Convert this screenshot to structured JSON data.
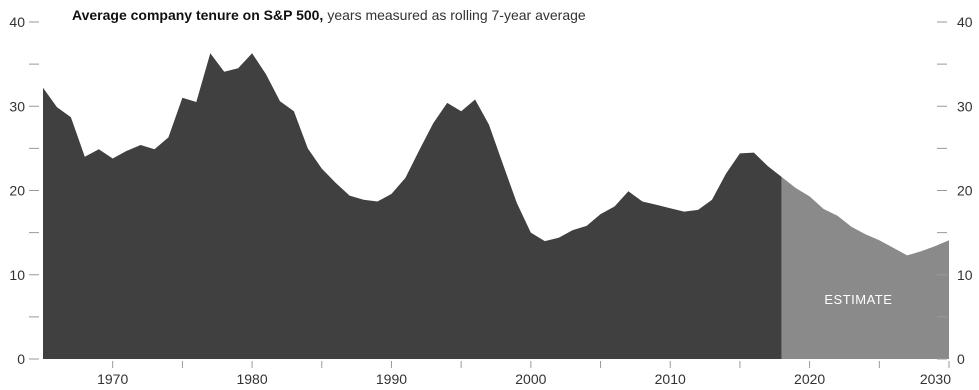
{
  "chart_data": {
    "type": "area",
    "title": "Average company tenure on S&P 500,",
    "subtitle": "years measured as rolling 7-year average",
    "xlabel": "",
    "ylabel": "",
    "xlim": [
      1965,
      2030
    ],
    "ylim": [
      0,
      40
    ],
    "x_ticks": [
      1970,
      1980,
      1990,
      2000,
      2010,
      2020,
      2030
    ],
    "y_ticks": [
      0,
      10,
      20,
      30,
      40
    ],
    "y_minor_ticks": [
      5,
      15,
      25,
      35
    ],
    "grid": false,
    "annotations": [
      {
        "text": "ESTIMATE",
        "x": 2023.5,
        "y": 6.5
      }
    ],
    "colors": {
      "actual": "#404040",
      "estimate": "#8a8a8a",
      "axis": "#999999"
    },
    "series": [
      {
        "name": "",
        "kind": "actual",
        "x": [
          1965,
          1966,
          1967,
          1968,
          1969,
          1970,
          1971,
          1972,
          1973,
          1974,
          1975,
          1976,
          1977,
          1978,
          1979,
          1980,
          1981,
          1982,
          1983,
          1984,
          1985,
          1986,
          1987,
          1988,
          1989,
          1990,
          1991,
          1992,
          1993,
          1994,
          1995,
          1996,
          1997,
          1998,
          1999,
          2000,
          2001,
          2002,
          2003,
          2004,
          2005,
          2006,
          2007,
          2008,
          2009,
          2010,
          2011,
          2012,
          2013,
          2014,
          2015,
          2016,
          2017,
          2018
        ],
        "y": [
          32.2,
          29.9,
          28.7,
          24.0,
          24.9,
          23.8,
          24.7,
          25.4,
          24.9,
          26.3,
          31.0,
          30.5,
          36.3,
          34.1,
          34.5,
          36.3,
          33.8,
          30.6,
          29.4,
          25.0,
          22.6,
          20.9,
          19.4,
          18.9,
          18.7,
          19.6,
          21.5,
          24.8,
          28.0,
          30.4,
          29.4,
          30.8,
          27.8,
          23.1,
          18.5,
          15.0,
          14.0,
          14.4,
          15.3,
          15.8,
          17.2,
          18.1,
          19.9,
          18.7,
          18.3,
          17.9,
          17.5,
          17.7,
          18.9,
          22.0,
          24.4,
          24.5,
          22.9,
          21.6
        ]
      },
      {
        "name": "",
        "kind": "estimate",
        "x": [
          2018,
          2019,
          2020,
          2021,
          2022,
          2023,
          2024,
          2025,
          2026,
          2027,
          2028,
          2029,
          2030
        ],
        "y": [
          21.6,
          20.3,
          19.3,
          17.8,
          17.0,
          15.7,
          14.8,
          14.1,
          13.2,
          12.3,
          12.8,
          13.4,
          14.1
        ]
      }
    ]
  }
}
